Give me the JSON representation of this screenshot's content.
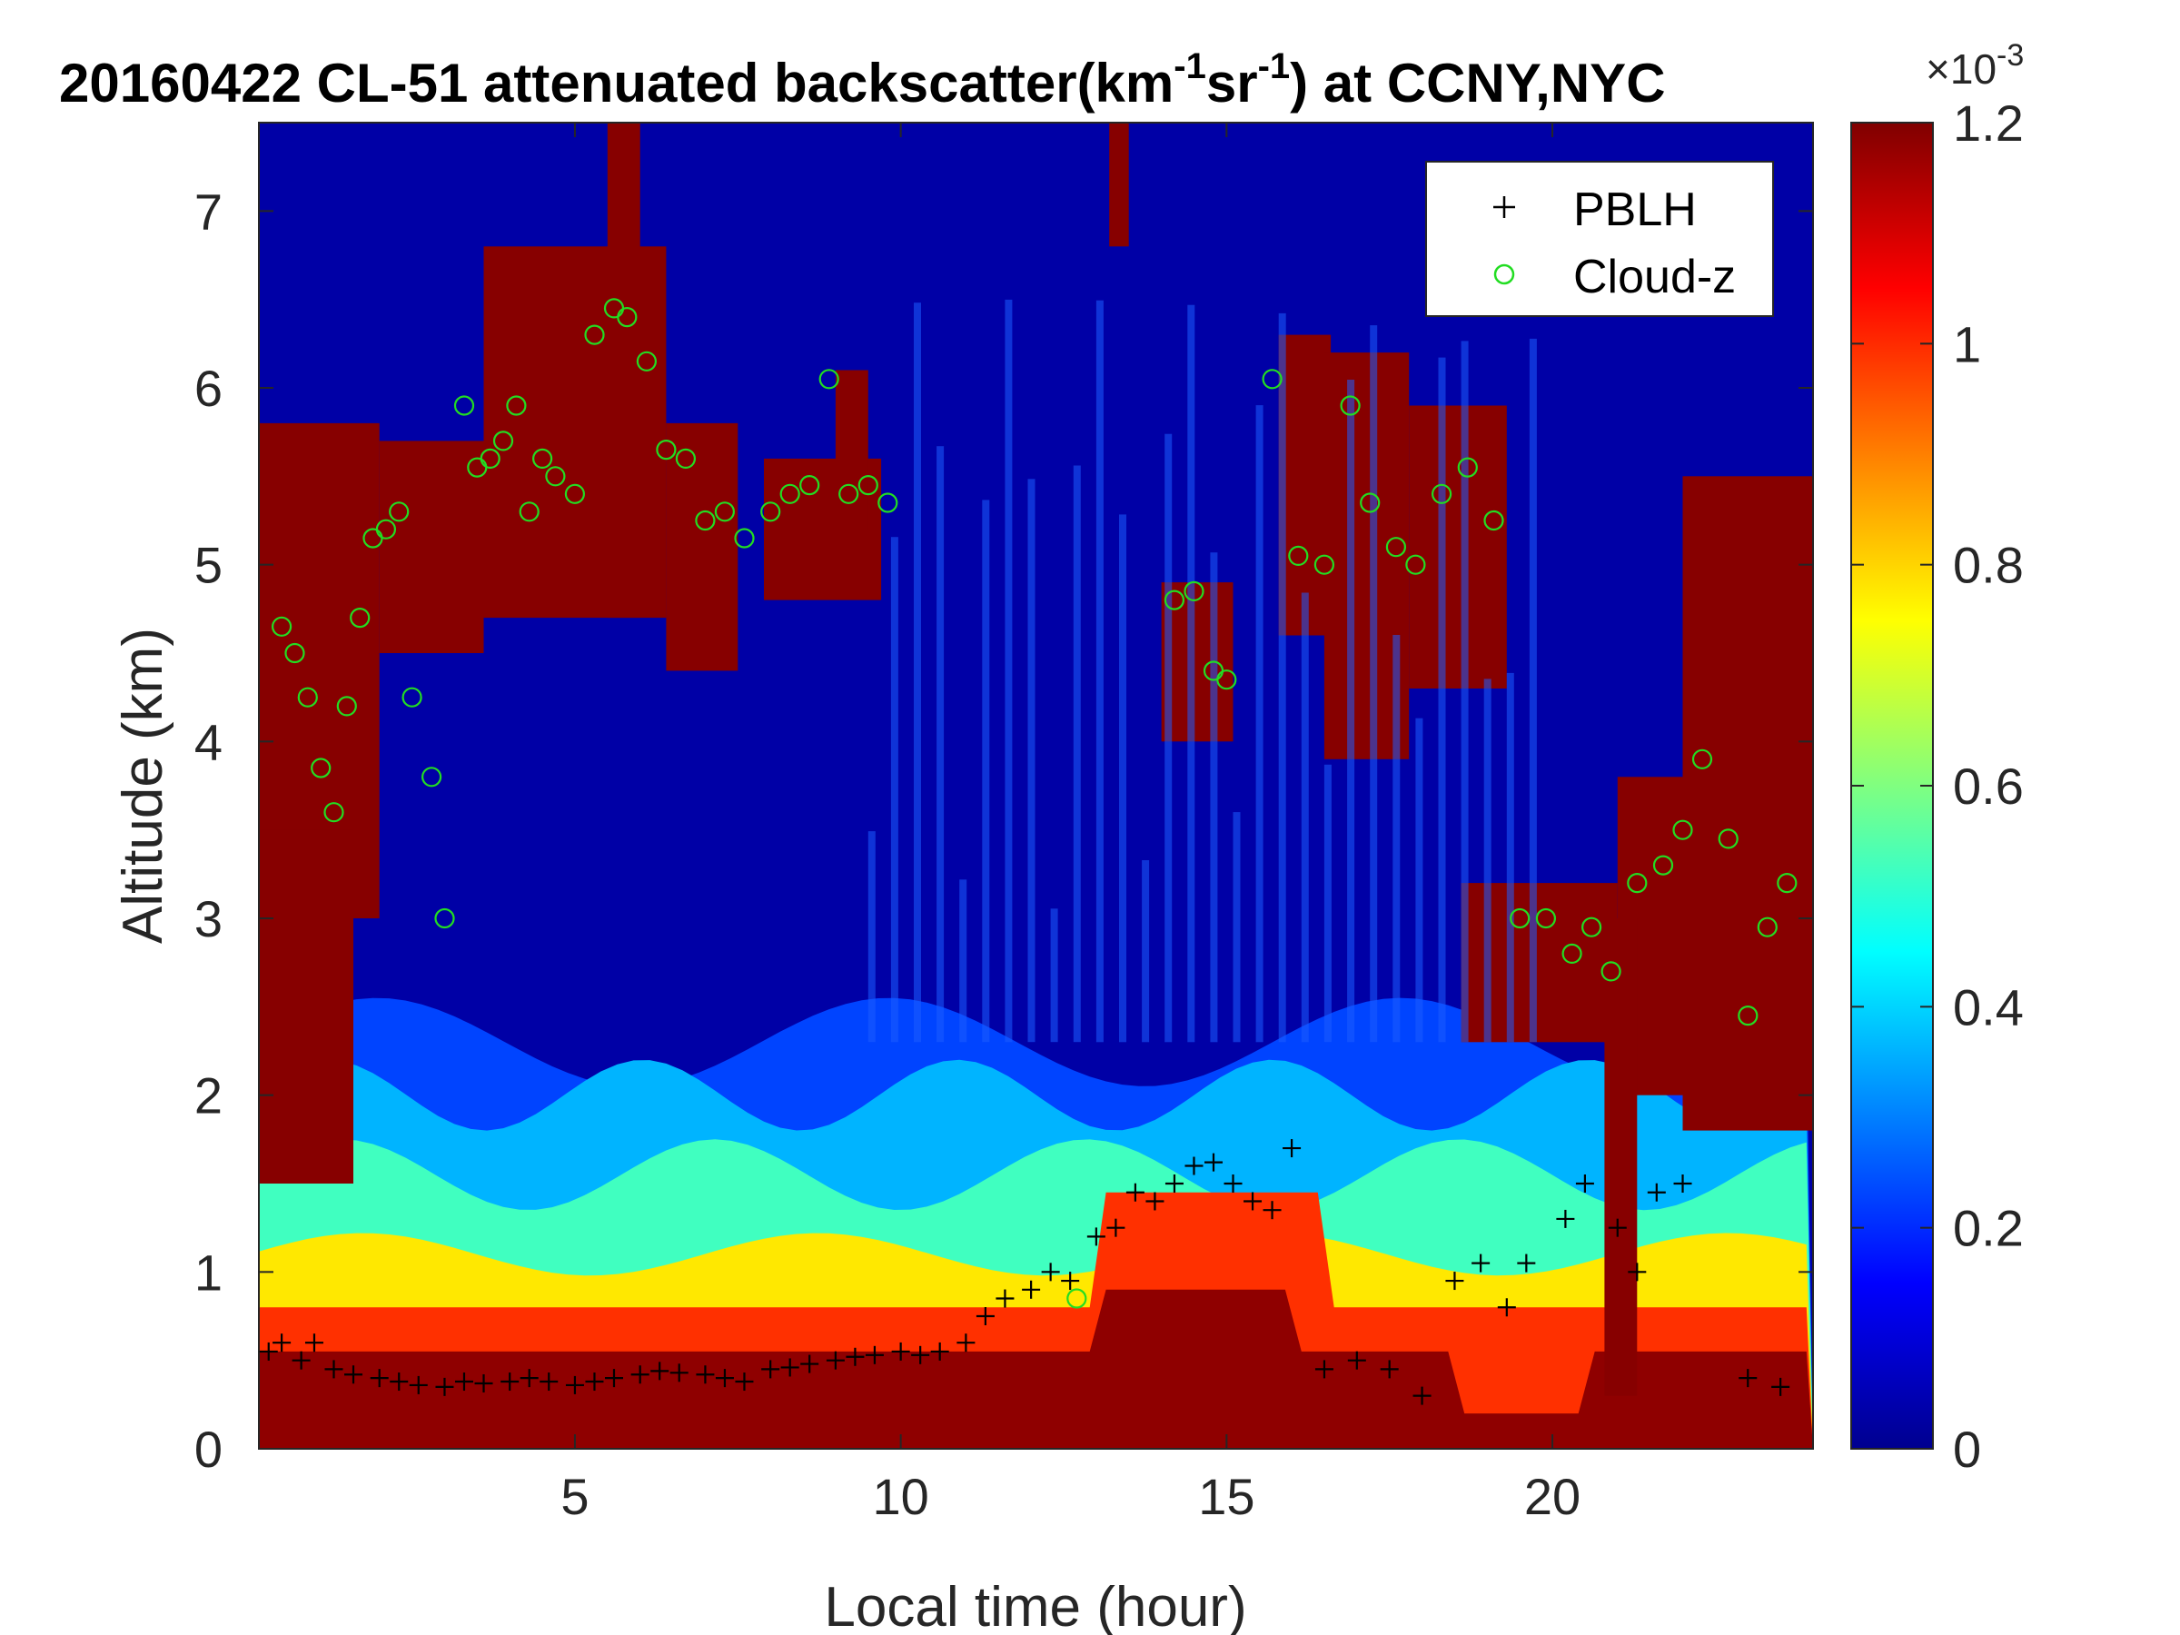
{
  "chart_data": {
    "type": "heatmap",
    "title": {
      "prefix": "20160422  CL-51 attenuated backscatter(km",
      "exp1": "-1",
      "mid": "sr",
      "exp2": "-1",
      "suffix": ") at CCNY,NYC"
    },
    "xlabel": "Local time (hour)",
    "ylabel": "Altitude (km)",
    "xlim": [
      0.15,
      24
    ],
    "ylim": [
      0,
      7.5
    ],
    "xticks": [
      5,
      10,
      15,
      20
    ],
    "yticks": [
      0,
      1,
      2,
      3,
      4,
      5,
      6,
      7
    ],
    "colorbar": {
      "range": [
        0,
        0.0012
      ],
      "tick_values": [
        0,
        0.0002,
        0.0004,
        0.0006,
        0.0008,
        0.001,
        0.0012
      ],
      "tick_labels": [
        "0",
        "0.2",
        "0.4",
        "0.6",
        "0.8",
        "1",
        "1.2"
      ],
      "exponent_label": "×10",
      "exponent": "-3",
      "colormap": "jet"
    },
    "legend": {
      "placement": "top-right",
      "entries": [
        {
          "name": "PBLH",
          "marker": "+",
          "color": "#000000"
        },
        {
          "name": "Cloud-z",
          "marker": "o",
          "color": "#22dd22"
        }
      ]
    },
    "pblh": {
      "name": "PBLH",
      "x": [
        0.3,
        0.5,
        0.8,
        1.0,
        1.3,
        1.6,
        2.0,
        2.3,
        2.6,
        3.0,
        3.3,
        3.6,
        4.0,
        4.3,
        4.6,
        5.0,
        5.3,
        5.6,
        6.0,
        6.3,
        6.6,
        7.0,
        7.3,
        7.6,
        8.0,
        8.3,
        8.6,
        9.0,
        9.3,
        9.6,
        10.0,
        10.3,
        10.6,
        11.0,
        11.3,
        11.6,
        12.0,
        12.3,
        12.6,
        13.0,
        13.3,
        13.6,
        13.9,
        14.2,
        14.5,
        14.8,
        15.1,
        15.4,
        15.7,
        16.0,
        16.5,
        17.0,
        17.5,
        18.0,
        18.5,
        18.9,
        19.3,
        19.6,
        20.2,
        20.5,
        21.0,
        21.3,
        21.6,
        22.0,
        23.0,
        23.5
      ],
      "y": [
        0.55,
        0.6,
        0.5,
        0.6,
        0.45,
        0.42,
        0.4,
        0.38,
        0.36,
        0.35,
        0.38,
        0.37,
        0.38,
        0.4,
        0.38,
        0.36,
        0.38,
        0.4,
        0.42,
        0.44,
        0.43,
        0.42,
        0.4,
        0.38,
        0.45,
        0.46,
        0.48,
        0.5,
        0.52,
        0.53,
        0.55,
        0.53,
        0.55,
        0.6,
        0.75,
        0.85,
        0.9,
        1.0,
        0.95,
        1.2,
        1.25,
        1.45,
        1.4,
        1.5,
        1.6,
        1.62,
        1.5,
        1.4,
        1.35,
        1.7,
        0.45,
        0.5,
        0.45,
        0.3,
        0.95,
        1.05,
        0.8,
        1.05,
        1.3,
        1.5,
        1.25,
        1.0,
        1.45,
        1.5,
        0.4,
        0.35
      ]
    },
    "cloud_z": {
      "name": "Cloud-z",
      "x": [
        0.5,
        0.7,
        0.9,
        1.1,
        1.3,
        1.5,
        1.7,
        1.9,
        2.1,
        2.3,
        2.5,
        2.8,
        3.0,
        3.3,
        3.5,
        3.7,
        3.9,
        4.1,
        4.3,
        4.5,
        4.7,
        5.0,
        5.3,
        5.6,
        5.8,
        6.1,
        6.4,
        6.7,
        7.0,
        7.3,
        7.6,
        8.0,
        8.3,
        8.6,
        8.9,
        9.2,
        9.5,
        9.8,
        12.7,
        14.2,
        14.5,
        14.8,
        15.0,
        15.7,
        16.1,
        16.5,
        16.9,
        17.2,
        17.6,
        17.9,
        18.3,
        18.7,
        19.1,
        19.5,
        19.9,
        20.3,
        20.6,
        20.9,
        21.3,
        21.7,
        22.0,
        22.3,
        22.7,
        23.0,
        23.3,
        23.6
      ],
      "y": [
        4.65,
        4.5,
        4.25,
        3.85,
        3.6,
        4.2,
        4.7,
        5.15,
        5.2,
        5.3,
        4.25,
        3.8,
        3.0,
        5.9,
        5.55,
        5.6,
        5.7,
        5.9,
        5.3,
        5.6,
        5.5,
        5.4,
        6.3,
        6.45,
        6.4,
        6.15,
        5.65,
        5.6,
        5.25,
        5.3,
        5.15,
        5.3,
        5.4,
        5.45,
        6.05,
        5.4,
        5.45,
        5.35,
        0.85,
        4.8,
        4.85,
        4.4,
        4.35,
        6.05,
        5.05,
        5.0,
        5.9,
        5.35,
        5.1,
        5.0,
        5.4,
        5.55,
        5.25,
        3.0,
        3.0,
        2.8,
        2.95,
        2.7,
        3.2,
        3.3,
        3.5,
        3.9,
        3.45,
        2.45,
        2.95,
        3.2
      ]
    }
  }
}
